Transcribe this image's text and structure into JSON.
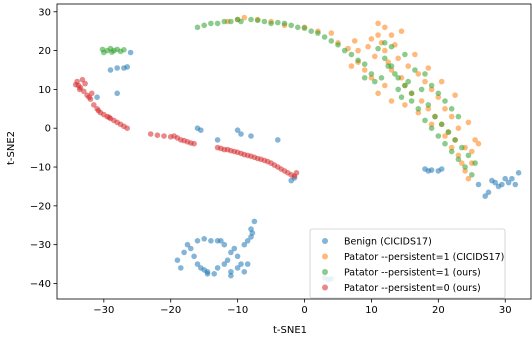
{
  "chart_data": {
    "type": "scatter",
    "title": "",
    "xlabel": "t-SNE1",
    "ylabel": "t-SNE2",
    "xlim": [
      -37,
      34
    ],
    "ylim": [
      -44,
      32
    ],
    "xticks": [
      -30,
      -20,
      -10,
      0,
      10,
      20,
      30
    ],
    "yticks": [
      -40,
      -30,
      -20,
      -10,
      0,
      10,
      20,
      30
    ],
    "xtick_labels": [
      "−30",
      "−20",
      "−10",
      "0",
      "10",
      "20",
      "30"
    ],
    "ytick_labels": [
      "−40",
      "−30",
      "−20",
      "−10",
      "0",
      "10",
      "20",
      "30"
    ],
    "grid": false,
    "legend_position": "lower-right",
    "series": [
      {
        "name": "Benign (CICIDS17)",
        "color": "#1f77b4",
        "points": [
          [
            -28,
            15.5
          ],
          [
            -27,
            15.5
          ],
          [
            -26.5,
            15.8
          ],
          [
            -26,
            19.5
          ],
          [
            -29,
            15
          ],
          [
            -28,
            9
          ],
          [
            -31,
            8
          ],
          [
            -19,
            -34
          ],
          [
            -18.5,
            -36
          ],
          [
            -18,
            -32
          ],
          [
            -17.5,
            -30
          ],
          [
            -17,
            -31
          ],
          [
            -16.5,
            -33
          ],
          [
            -16,
            -35
          ],
          [
            -16,
            -29
          ],
          [
            -15.5,
            -36
          ],
          [
            -15,
            -36.5
          ],
          [
            -15,
            -28.5
          ],
          [
            -14.5,
            -37
          ],
          [
            -14,
            -29
          ],
          [
            -13.5,
            -37.5
          ],
          [
            -13,
            -29
          ],
          [
            -13,
            -36
          ],
          [
            -12.5,
            -29
          ],
          [
            -12,
            -30
          ],
          [
            -12,
            -35
          ],
          [
            -11.5,
            -34
          ],
          [
            -11,
            -32
          ],
          [
            -11,
            -37
          ],
          [
            -10.5,
            -31
          ],
          [
            -10,
            -33
          ],
          [
            -10,
            -36
          ],
          [
            -9.5,
            -35
          ],
          [
            -9,
            -30
          ],
          [
            -9,
            -37
          ],
          [
            -8.5,
            -29
          ],
          [
            -8.5,
            -35
          ],
          [
            -8,
            -28
          ],
          [
            -8,
            -26
          ],
          [
            -7.5,
            -24
          ],
          [
            -7.8,
            -27
          ],
          [
            -11,
            -38
          ],
          [
            -14.5,
            -37.5
          ],
          [
            -2,
            -13.5
          ],
          [
            -1.5,
            -12.8
          ],
          [
            -16,
            0
          ],
          [
            -15.5,
            -0.5
          ],
          [
            -10,
            -0.5
          ],
          [
            -9.5,
            -1.5
          ],
          [
            -13,
            -3
          ],
          [
            -8,
            -2
          ],
          [
            -4,
            -3
          ],
          [
            18,
            -10.5
          ],
          [
            19,
            -10.8
          ],
          [
            20,
            -11
          ],
          [
            20.5,
            -10.5
          ],
          [
            18.5,
            -11
          ],
          [
            28,
            -13.5
          ],
          [
            28.5,
            -14
          ],
          [
            29,
            -15
          ],
          [
            29.5,
            -14.5
          ],
          [
            30,
            -13
          ],
          [
            30.5,
            -14
          ],
          [
            31,
            -13
          ],
          [
            32,
            -11.5
          ],
          [
            31.5,
            -14.5
          ],
          [
            27,
            -17.5
          ],
          [
            27.5,
            -16.5
          ],
          [
            26,
            -14.5
          ],
          [
            3,
            -38.5
          ],
          [
            3.5,
            -39
          ],
          [
            4,
            -38.8
          ]
        ]
      },
      {
        "name": "Patator --persistent=1 (CICIDS17)",
        "color": "#ff7f0e",
        "points": [
          [
            -11.5,
            27.5
          ],
          [
            -10,
            28
          ],
          [
            -9,
            28.5
          ],
          [
            -7,
            28
          ],
          [
            -5,
            27.5
          ],
          [
            -3,
            26.5
          ],
          [
            0,
            26
          ],
          [
            2,
            25
          ],
          [
            4,
            24.5
          ],
          [
            5,
            22
          ],
          [
            6.5,
            20.5
          ],
          [
            8,
            17
          ],
          [
            9,
            15
          ],
          [
            9.5,
            21
          ],
          [
            10,
            23
          ],
          [
            11,
            24
          ],
          [
            11.5,
            22
          ],
          [
            12,
            20
          ],
          [
            12.5,
            17
          ],
          [
            13,
            15
          ],
          [
            13.5,
            21.5
          ],
          [
            14,
            18
          ],
          [
            14.5,
            13
          ],
          [
            15,
            11
          ],
          [
            15.5,
            16
          ],
          [
            16,
            9
          ],
          [
            17,
            14
          ],
          [
            17.5,
            7
          ],
          [
            18,
            12
          ],
          [
            18.5,
            5
          ],
          [
            19,
            10
          ],
          [
            19.5,
            3
          ],
          [
            20,
            8
          ],
          [
            20.5,
            1
          ],
          [
            21,
            5
          ],
          [
            21.5,
            -1
          ],
          [
            22,
            3
          ],
          [
            22,
            -5
          ],
          [
            22.5,
            -3
          ],
          [
            23,
            -7
          ],
          [
            23.5,
            -9
          ],
          [
            24,
            -5
          ],
          [
            24,
            -11
          ],
          [
            24.5,
            -13
          ],
          [
            25,
            -9
          ],
          [
            25,
            -6
          ],
          [
            25.5,
            -3
          ],
          [
            23,
            0
          ],
          [
            21,
            -2
          ],
          [
            19,
            1
          ],
          [
            17,
            4
          ],
          [
            8,
            20
          ],
          [
            7,
            16
          ],
          [
            10,
            13
          ],
          [
            11,
            9
          ],
          [
            12,
            11
          ],
          [
            13,
            7
          ],
          [
            15,
            6
          ],
          [
            11,
            27
          ],
          [
            12,
            26
          ],
          [
            13,
            24
          ],
          [
            14.5,
            25
          ],
          [
            7.5,
            22.5
          ],
          [
            10.5,
            18.5
          ],
          [
            16.5,
            19
          ],
          [
            18.5,
            15.5
          ],
          [
            20.5,
            12
          ],
          [
            22.5,
            8.5
          ],
          [
            24.5,
            1.5
          ],
          [
            26,
            -4
          ]
        ]
      },
      {
        "name": "Patator --persistent=1 (ours)",
        "color": "#2ca02c",
        "points": [
          [
            -30,
            19.5
          ],
          [
            -29.5,
            20
          ],
          [
            -29,
            20.5
          ],
          [
            -28.5,
            20
          ],
          [
            -28,
            20.3
          ],
          [
            -27.5,
            19.8
          ],
          [
            -27,
            20.2
          ],
          [
            -30.2,
            20.3
          ],
          [
            -28.8,
            19.6
          ],
          [
            -16,
            26
          ],
          [
            -15,
            26.5
          ],
          [
            -14,
            27
          ],
          [
            -13,
            27
          ],
          [
            -12,
            27.5
          ],
          [
            -11,
            27.5
          ],
          [
            -10,
            28
          ],
          [
            -9.5,
            27.5
          ],
          [
            -8,
            28
          ],
          [
            -7,
            27.8
          ],
          [
            -6,
            27.5
          ],
          [
            -5,
            27
          ],
          [
            -4,
            27.2
          ],
          [
            -3,
            27
          ],
          [
            -2,
            26.5
          ],
          [
            -1,
            26
          ],
          [
            0,
            25.8
          ],
          [
            1,
            25
          ],
          [
            2,
            24.5
          ],
          [
            3,
            23.5
          ],
          [
            4,
            22.5
          ],
          [
            5,
            21.5
          ],
          [
            6,
            20
          ],
          [
            7,
            19
          ],
          [
            8,
            17.5
          ],
          [
            9,
            16.5
          ],
          [
            9,
            13
          ],
          [
            10,
            14
          ],
          [
            10.5,
            12
          ],
          [
            11,
            20.5
          ],
          [
            11.5,
            13
          ],
          [
            12,
            22
          ],
          [
            12.5,
            16
          ],
          [
            13,
            21
          ],
          [
            13.5,
            14
          ],
          [
            14,
            10
          ],
          [
            14.5,
            8
          ],
          [
            15,
            19
          ],
          [
            15.5,
            12
          ],
          [
            16,
            7
          ],
          [
            16.5,
            15
          ],
          [
            17,
            5
          ],
          [
            17.5,
            10
          ],
          [
            18,
            2
          ],
          [
            18.5,
            6
          ],
          [
            19,
            0
          ],
          [
            19.5,
            3
          ],
          [
            20,
            -2
          ],
          [
            20.5,
            1
          ],
          [
            21,
            -4
          ],
          [
            21.5,
            -1
          ],
          [
            22,
            -6
          ],
          [
            22.5,
            -3
          ],
          [
            23,
            -8
          ],
          [
            23.5,
            -5
          ],
          [
            24,
            -10
          ],
          [
            24.5,
            -7
          ],
          [
            25,
            -12
          ],
          [
            25.5,
            -9
          ],
          [
            18,
            14
          ],
          [
            19,
            11
          ],
          [
            20,
            9
          ],
          [
            21,
            7
          ],
          [
            22,
            5
          ],
          [
            23,
            3
          ],
          [
            12,
            18
          ],
          [
            13,
            16
          ],
          [
            14,
            13
          ],
          [
            15,
            11
          ],
          [
            16,
            9
          ]
        ]
      },
      {
        "name": "Patator --persistent=0 (ours)",
        "color": "#d62728",
        "points": [
          [
            -34,
            12
          ],
          [
            -33.8,
            11
          ],
          [
            -33.5,
            10.5
          ],
          [
            -33.2,
            12.5
          ],
          [
            -33,
            9.5
          ],
          [
            -32.8,
            11.5
          ],
          [
            -32.5,
            8.5
          ],
          [
            -32,
            7.5
          ],
          [
            -31.8,
            9
          ],
          [
            -31.5,
            6
          ],
          [
            -31,
            5
          ],
          [
            -30.5,
            4
          ],
          [
            -30,
            3.5
          ],
          [
            -29.5,
            3
          ],
          [
            -29,
            2.5
          ],
          [
            -28.5,
            2
          ],
          [
            -28,
            1.5
          ],
          [
            -27.5,
            1
          ],
          [
            -27,
            0.5
          ],
          [
            -26.5,
            0
          ],
          [
            -23,
            -1.5
          ],
          [
            -22,
            -1.8
          ],
          [
            -21,
            -2
          ],
          [
            -20,
            -2.2
          ],
          [
            -19.5,
            -2
          ],
          [
            -19,
            -2.5
          ],
          [
            -18.5,
            -3
          ],
          [
            -18,
            -3.2
          ],
          [
            -17.5,
            -3.5
          ],
          [
            -17,
            -3.8
          ],
          [
            -16.5,
            -4
          ],
          [
            -13,
            -5
          ],
          [
            -12.5,
            -5.2
          ],
          [
            -12,
            -5.5
          ],
          [
            -11.5,
            -5.5
          ],
          [
            -11,
            -5.8
          ],
          [
            -10.5,
            -6
          ],
          [
            -10,
            -6.2
          ],
          [
            -9.5,
            -6.5
          ],
          [
            -9,
            -6.8
          ],
          [
            -8.5,
            -7
          ],
          [
            -8,
            -7.2
          ],
          [
            -7.5,
            -7.5
          ],
          [
            -7,
            -7.8
          ],
          [
            -6.5,
            -8
          ],
          [
            -6,
            -8.3
          ],
          [
            -5.5,
            -8.6
          ],
          [
            -5,
            -9
          ],
          [
            -4.5,
            -9.5
          ],
          [
            -4,
            -10
          ],
          [
            -3.5,
            -10.5
          ],
          [
            -3,
            -11
          ],
          [
            -2.5,
            -11.5
          ],
          [
            -2,
            -12
          ],
          [
            -1.5,
            -12.3
          ],
          [
            -1.2,
            -11.5
          ],
          [
            -34.2,
            11.2
          ],
          [
            -33.6,
            10
          ],
          [
            -32.2,
            8
          ],
          [
            -30.8,
            4.5
          ],
          [
            -29.2,
            2.8
          ]
        ]
      }
    ]
  }
}
